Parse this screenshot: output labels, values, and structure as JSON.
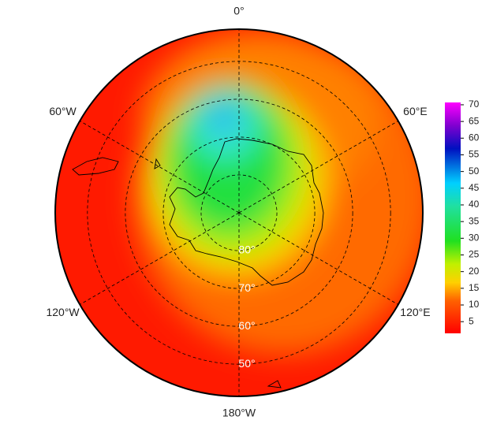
{
  "map": {
    "lat_lim": [
      90,
      41.5
    ],
    "lat_ticks": [
      {
        "value": 50,
        "label": "50°"
      },
      {
        "value": 60,
        "label": "60°"
      },
      {
        "value": 70,
        "label": "70°"
      },
      {
        "value": 80,
        "label": "80°"
      }
    ],
    "lon_ticks": [
      {
        "value": 0,
        "label": "0°"
      },
      {
        "value": 60,
        "label": "60°E"
      },
      {
        "value": 120,
        "label": "120°E"
      },
      {
        "value": 180,
        "label": "180°W"
      },
      {
        "value": -120,
        "label": "120°W"
      },
      {
        "value": -60,
        "label": "60°W"
      }
    ]
  },
  "colorbar": {
    "range": [
      1.5,
      70.7
    ],
    "ticks": [
      5,
      10,
      15,
      20,
      25,
      30,
      35,
      40,
      45,
      50,
      55,
      60,
      65,
      70
    ]
  }
}
